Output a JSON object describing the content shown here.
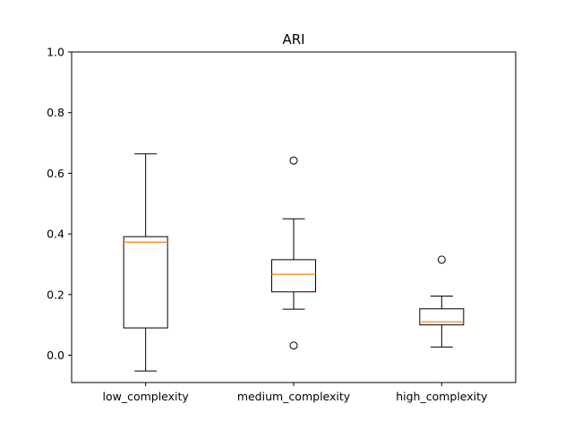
{
  "chart_data": {
    "type": "box",
    "title": "ARI",
    "xlabel": "",
    "ylabel": "",
    "ylim": [
      -0.09,
      1.0
    ],
    "yticks": [
      0.0,
      0.2,
      0.4,
      0.6,
      0.8,
      1.0
    ],
    "ytick_labels": [
      "0.0",
      "0.2",
      "0.4",
      "0.6",
      "0.8",
      "1.0"
    ],
    "grid": false,
    "box_color": "#000000",
    "median_color": "#ff7f0e",
    "categories": [
      "low_complexity",
      "medium_complexity",
      "high_complexity"
    ],
    "boxes": [
      {
        "category": "low_complexity",
        "whisker_low": -0.052,
        "q1": 0.09,
        "median": 0.373,
        "q3": 0.391,
        "whisker_high": 0.664,
        "outliers": []
      },
      {
        "category": "medium_complexity",
        "whisker_low": 0.152,
        "q1": 0.209,
        "median": 0.267,
        "q3": 0.315,
        "whisker_high": 0.45,
        "outliers": [
          0.642,
          0.032
        ]
      },
      {
        "category": "high_complexity",
        "whisker_low": 0.027,
        "q1": 0.1,
        "median": 0.11,
        "q3": 0.153,
        "whisker_high": 0.195,
        "outliers": [
          0.315
        ]
      }
    ]
  }
}
